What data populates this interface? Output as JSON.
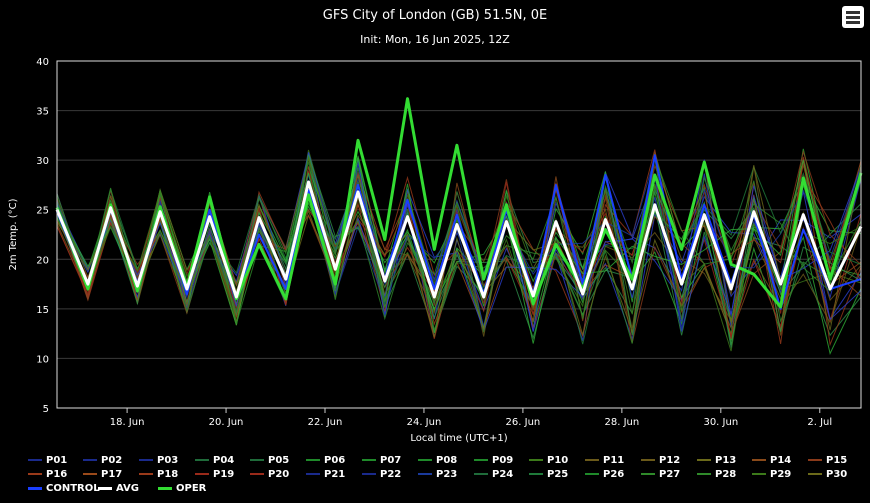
{
  "header": {
    "title": "GFS City of London (GB) 51.5N, 0E",
    "subtitle": "Init: Mon, 16 Jun 2025, 12Z"
  },
  "chart_data": {
    "type": "line",
    "title": "GFS City of London (GB) 51.5N, 0E",
    "subtitle": "Init: Mon, 16 Jun 2025, 12Z",
    "xlabel": "Local time (UTC+1)",
    "ylabel": "2m Temp. (°C)",
    "ylim": [
      5,
      40
    ],
    "yticks": [
      5,
      10,
      15,
      20,
      25,
      30,
      35,
      40
    ],
    "xlim": [
      "2025-06-16T14:00",
      "2025-07-02T20:00"
    ],
    "xtick_labels": [
      {
        "label": "18. Jun",
        "date": "2025-06-18"
      },
      {
        "label": "20. Jun",
        "date": "2025-06-20"
      },
      {
        "label": "22. Jun",
        "date": "2025-06-22"
      },
      {
        "label": "24. Jun",
        "date": "2025-06-24"
      },
      {
        "label": "26. Jun",
        "date": "2025-06-26"
      },
      {
        "label": "28. Jun",
        "date": "2025-06-28"
      },
      {
        "label": "30. Jun",
        "date": "2025-06-30"
      },
      {
        "label": "2. Jul",
        "date": "2025-07-02"
      }
    ],
    "grid": true,
    "legend_position": "bottom",
    "avg": {
      "name": "AVG",
      "color": "#ffffff",
      "points": [
        [
          "2025-06-16T14:00",
          25.0
        ],
        [
          "2025-06-17T05:00",
          17.5
        ],
        [
          "2025-06-17T16:00",
          25.2
        ],
        [
          "2025-06-18T05:00",
          17.3
        ],
        [
          "2025-06-18T16:00",
          24.8
        ],
        [
          "2025-06-19T05:00",
          17.0
        ],
        [
          "2025-06-19T16:00",
          24.3
        ],
        [
          "2025-06-20T05:00",
          16.2
        ],
        [
          "2025-06-20T16:00",
          24.2
        ],
        [
          "2025-06-21T05:00",
          18.0
        ],
        [
          "2025-06-21T16:00",
          27.8
        ],
        [
          "2025-06-22T05:00",
          19.0
        ],
        [
          "2025-06-22T16:00",
          26.8
        ],
        [
          "2025-06-23T05:00",
          17.8
        ],
        [
          "2025-06-23T16:00",
          24.3
        ],
        [
          "2025-06-24T05:00",
          16.2
        ],
        [
          "2025-06-24T16:00",
          23.5
        ],
        [
          "2025-06-25T05:00",
          16.2
        ],
        [
          "2025-06-25T16:00",
          23.8
        ],
        [
          "2025-06-26T05:00",
          16.3
        ],
        [
          "2025-06-26T16:00",
          23.8
        ],
        [
          "2025-06-27T05:00",
          16.5
        ],
        [
          "2025-06-27T16:00",
          24.0
        ],
        [
          "2025-06-28T05:00",
          17.0
        ],
        [
          "2025-06-28T16:00",
          25.5
        ],
        [
          "2025-06-29T05:00",
          17.5
        ],
        [
          "2025-06-29T16:00",
          24.5
        ],
        [
          "2025-06-30T05:00",
          17.0
        ],
        [
          "2025-06-30T16:00",
          24.8
        ],
        [
          "2025-07-01T05:00",
          17.5
        ],
        [
          "2025-07-01T16:00",
          24.5
        ],
        [
          "2025-07-02T05:00",
          17.0
        ],
        [
          "2025-07-02T20:00",
          23.3
        ]
      ]
    },
    "oper": {
      "name": "OPER",
      "color": "#33dd33",
      "points": [
        [
          "2025-06-16T14:00",
          25.2
        ],
        [
          "2025-06-17T05:00",
          17.0
        ],
        [
          "2025-06-17T16:00",
          25.5
        ],
        [
          "2025-06-18T05:00",
          16.8
        ],
        [
          "2025-06-18T16:00",
          25.3
        ],
        [
          "2025-06-19T05:00",
          17.2
        ],
        [
          "2025-06-19T16:00",
          26.3
        ],
        [
          "2025-06-20T05:00",
          16.0
        ],
        [
          "2025-06-20T16:00",
          21.5
        ],
        [
          "2025-06-21T05:00",
          16.0
        ],
        [
          "2025-06-21T16:00",
          26.5
        ],
        [
          "2025-06-22T05:00",
          17.5
        ],
        [
          "2025-06-22T16:00",
          32.0
        ],
        [
          "2025-06-23T05:00",
          22.0
        ],
        [
          "2025-06-23T16:00",
          36.2
        ],
        [
          "2025-06-24T05:00",
          21.0
        ],
        [
          "2025-06-24T16:00",
          31.5
        ],
        [
          "2025-06-25T05:00",
          18.0
        ],
        [
          "2025-06-25T16:00",
          25.5
        ],
        [
          "2025-06-26T05:00",
          15.5
        ],
        [
          "2025-06-26T16:00",
          21.5
        ],
        [
          "2025-06-27T05:00",
          17.0
        ],
        [
          "2025-06-27T16:00",
          23.0
        ],
        [
          "2025-06-28T05:00",
          18.0
        ],
        [
          "2025-06-28T16:00",
          28.5
        ],
        [
          "2025-06-29T05:00",
          21.0
        ],
        [
          "2025-06-29T16:00",
          29.8
        ],
        [
          "2025-06-30T05:00",
          19.5
        ],
        [
          "2025-06-30T16:00",
          18.5
        ],
        [
          "2025-07-01T05:00",
          15.2
        ],
        [
          "2025-07-01T16:00",
          28.2
        ],
        [
          "2025-07-02T05:00",
          18.0
        ],
        [
          "2025-07-02T20:00",
          28.7
        ]
      ]
    },
    "control": {
      "name": "CONTROL",
      "color": "#1a3fff",
      "points": [
        [
          "2025-06-16T14:00",
          24.8
        ],
        [
          "2025-06-17T05:00",
          17.0
        ],
        [
          "2025-06-17T16:00",
          25.0
        ],
        [
          "2025-06-18T05:00",
          17.0
        ],
        [
          "2025-06-18T16:00",
          25.0
        ],
        [
          "2025-06-19T05:00",
          16.5
        ],
        [
          "2025-06-19T16:00",
          25.0
        ],
        [
          "2025-06-20T05:00",
          16.0
        ],
        [
          "2025-06-20T16:00",
          22.5
        ],
        [
          "2025-06-21T05:00",
          17.0
        ],
        [
          "2025-06-21T16:00",
          27.0
        ],
        [
          "2025-06-22T05:00",
          19.0
        ],
        [
          "2025-06-22T16:00",
          27.5
        ],
        [
          "2025-06-23T05:00",
          18.0
        ],
        [
          "2025-06-23T16:00",
          26.0
        ],
        [
          "2025-06-24T05:00",
          17.0
        ],
        [
          "2025-06-24T16:00",
          24.5
        ],
        [
          "2025-06-25T05:00",
          16.5
        ],
        [
          "2025-06-25T16:00",
          25.0
        ],
        [
          "2025-06-26T05:00",
          16.5
        ],
        [
          "2025-06-26T16:00",
          27.5
        ],
        [
          "2025-06-27T05:00",
          17.5
        ],
        [
          "2025-06-27T16:00",
          28.5
        ],
        [
          "2025-06-28T05:00",
          18.0
        ],
        [
          "2025-06-28T16:00",
          30.5
        ],
        [
          "2025-06-29T05:00",
          18.0
        ],
        [
          "2025-06-29T16:00",
          25.5
        ],
        [
          "2025-06-30T05:00",
          17.5
        ],
        [
          "2025-06-30T16:00",
          24.5
        ],
        [
          "2025-07-01T05:00",
          15.0
        ],
        [
          "2025-07-01T16:00",
          23.0
        ],
        [
          "2025-07-02T05:00",
          17.0
        ],
        [
          "2025-07-02T20:00",
          18.0
        ]
      ]
    },
    "perturbation_spread": {
      "note": "30 perturbation members P01-P30, each following the diurnal cycle near AVG",
      "max_deviation_c": 8
    },
    "legend": [
      {
        "label": "P01",
        "color": "#1a2a8c"
      },
      {
        "label": "P02",
        "color": "#1a2a8c"
      },
      {
        "label": "P03",
        "color": "#1a2a8c"
      },
      {
        "label": "P04",
        "color": "#1f6b3a"
      },
      {
        "label": "P05",
        "color": "#1f6b3a"
      },
      {
        "label": "P06",
        "color": "#1f8a2a"
      },
      {
        "label": "P07",
        "color": "#1f8a2a"
      },
      {
        "label": "P08",
        "color": "#1f8a2a"
      },
      {
        "label": "P09",
        "color": "#1f8a2a"
      },
      {
        "label": "P10",
        "color": "#3c7a1a"
      },
      {
        "label": "P11",
        "color": "#6b5a1a"
      },
      {
        "label": "P12",
        "color": "#6b5a1a"
      },
      {
        "label": "P13",
        "color": "#6b6a1a"
      },
      {
        "label": "P14",
        "color": "#8a4a1a"
      },
      {
        "label": "P15",
        "color": "#8a3a1a"
      },
      {
        "label": "P16",
        "color": "#9a3a1a"
      },
      {
        "label": "P17",
        "color": "#9a4a1a"
      },
      {
        "label": "P18",
        "color": "#9a3a1a"
      },
      {
        "label": "P19",
        "color": "#9a2a1a"
      },
      {
        "label": "P20",
        "color": "#9a2a1a"
      },
      {
        "label": "P21",
        "color": "#1a2a8c"
      },
      {
        "label": "P22",
        "color": "#1a2a8c"
      },
      {
        "label": "P23",
        "color": "#1a3a9c"
      },
      {
        "label": "P24",
        "color": "#1f6b3a"
      },
      {
        "label": "P25",
        "color": "#1f7a3a"
      },
      {
        "label": "P26",
        "color": "#1f8a2a"
      },
      {
        "label": "P27",
        "color": "#2f8a2a"
      },
      {
        "label": "P28",
        "color": "#2f8a2a"
      },
      {
        "label": "P29",
        "color": "#3c7a1a"
      },
      {
        "label": "P30",
        "color": "#6b6a1a"
      },
      {
        "label": "CONTROL",
        "color": "#1a3fff"
      },
      {
        "label": "AVG",
        "color": "#ffffff"
      },
      {
        "label": "OPER",
        "color": "#33dd33"
      }
    ]
  }
}
